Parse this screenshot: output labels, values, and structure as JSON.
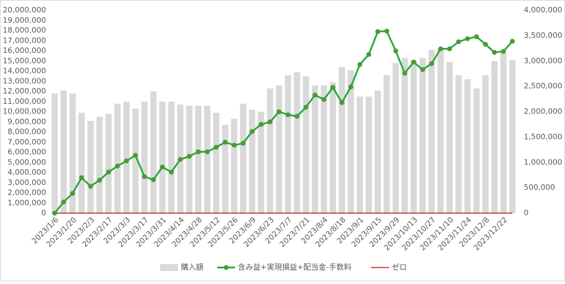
{
  "chart_data": {
    "type": "bar-line",
    "categories": [
      "2023/1/6",
      null,
      "2023/1/20",
      null,
      "2023/2/3",
      null,
      "2023/2/17",
      null,
      "2023/3/3",
      null,
      "2023/3/17",
      null,
      "2023/3/31",
      null,
      "2023/4/14",
      null,
      "2023/4/28",
      null,
      "2023/5/12",
      null,
      "2023/5/26",
      null,
      "2023/6/9",
      null,
      "2023/6/23",
      null,
      "2023/7/7",
      null,
      "2023/7/21",
      null,
      "2023/8/4",
      null,
      "2023/8/18",
      null,
      "2023/9/1",
      null,
      "2023/9/15",
      null,
      "2023/9/29",
      null,
      "2023/10/13",
      null,
      "2023/10/27",
      null,
      "2023/11/10",
      null,
      "2023/11/24",
      null,
      "2023/12/8",
      null,
      "2023/12/22",
      null
    ],
    "series": [
      {
        "name": "購入額",
        "kind": "bar",
        "color": "#d9d9d9",
        "values": [
          11800000,
          12100000,
          11800000,
          9900000,
          9100000,
          9500000,
          9800000,
          10800000,
          11000000,
          10300000,
          11000000,
          12000000,
          11000000,
          11000000,
          10700000,
          10600000,
          10600000,
          10600000,
          9900000,
          8700000,
          9300000,
          10800000,
          10200000,
          10000000,
          12300000,
          12600000,
          13600000,
          13900000,
          13500000,
          12600000,
          12600000,
          12900000,
          14400000,
          14100000,
          11500000,
          11500000,
          12100000,
          13600000,
          14800000,
          15300000,
          15100000,
          15300000,
          16100000,
          16200000,
          14900000,
          13600000,
          13200000,
          12300000,
          13600000,
          15000000,
          15800000,
          15100000
        ]
      },
      {
        "name": "含み益+実現損益+配当金-手数料",
        "kind": "line",
        "axis": "y2",
        "color": "#22a83a",
        "marker_color": "#6b8e23",
        "values": [
          0,
          220000,
          390000,
          700000,
          530000,
          650000,
          810000,
          930000,
          1030000,
          1140000,
          720000,
          660000,
          910000,
          810000,
          1060000,
          1120000,
          1210000,
          1210000,
          1300000,
          1400000,
          1340000,
          1380000,
          1610000,
          1750000,
          1800000,
          2000000,
          1940000,
          1910000,
          2090000,
          2330000,
          2240000,
          2480000,
          2180000,
          2490000,
          2930000,
          3130000,
          3580000,
          3590000,
          3200000,
          2760000,
          2980000,
          2830000,
          2950000,
          3240000,
          3240000,
          3380000,
          3440000,
          3480000,
          3330000,
          3170000,
          3190000,
          3390000
        ]
      },
      {
        "name": "ゼロ",
        "kind": "flat",
        "color": "#c00000",
        "values": [
          0,
          0,
          0,
          0,
          0,
          0,
          0,
          0,
          0,
          0,
          0,
          0,
          0,
          0,
          0,
          0,
          0,
          0,
          0,
          0,
          0,
          0,
          0,
          0,
          0,
          0,
          0,
          0,
          0,
          0,
          0,
          0,
          0,
          0,
          0,
          0,
          0,
          0,
          0,
          0,
          0,
          0,
          0,
          0,
          0,
          0,
          0,
          0,
          0,
          0,
          0,
          0
        ]
      }
    ],
    "ylim": [
      0,
      20000000
    ],
    "yticks": [
      0,
      {
        "value": 1000000,
        "label": "1,000,000"
      },
      {
        "value": 2000000,
        "label": "2,000,000"
      },
      {
        "value": 3000000,
        "label": "3,000,000"
      },
      {
        "value": 4000000,
        "label": "4,000,000"
      },
      {
        "value": 5000000,
        "label": "5,000,000"
      },
      {
        "value": 6000000,
        "label": "6,000,000"
      },
      {
        "value": 7000000,
        "label": "7,000,000"
      },
      {
        "value": 8000000,
        "label": "8,000,000"
      },
      {
        "value": 9000000,
        "label": "9,000,000"
      },
      {
        "value": 10000000,
        "label": "10,000,000"
      },
      {
        "value": 11000000,
        "label": "11,000,000"
      },
      {
        "value": 12000000,
        "label": "12,000,000"
      },
      {
        "value": 13000000,
        "label": "13,000,000"
      },
      {
        "value": 14000000,
        "label": "14,000,000"
      },
      {
        "value": 15000000,
        "label": "15,000,000"
      },
      {
        "value": 16000000,
        "label": "16,000,000"
      },
      {
        "value": 17000000,
        "label": "17,000,000"
      },
      {
        "value": 18000000,
        "label": "18,000,000"
      },
      {
        "value": 19000000,
        "label": "19,000,000"
      },
      {
        "value": 20000000,
        "label": "20,000,000"
      }
    ],
    "y2lim": [
      0,
      4000000
    ],
    "y2ticks": [
      0,
      {
        "value": 500000,
        "label": "500,000"
      },
      {
        "value": 1000000,
        "label": "1,000,000"
      },
      {
        "value": 1500000,
        "label": "1,500,000"
      },
      {
        "value": 2000000,
        "label": "2,000,000"
      },
      {
        "value": 2500000,
        "label": "2,500,000"
      },
      {
        "value": 3000000,
        "label": "3,000,000"
      },
      {
        "value": 3500000,
        "label": "3,500,000"
      },
      {
        "value": 4000000,
        "label": "4,000,000"
      }
    ],
    "legend": "bottom"
  }
}
